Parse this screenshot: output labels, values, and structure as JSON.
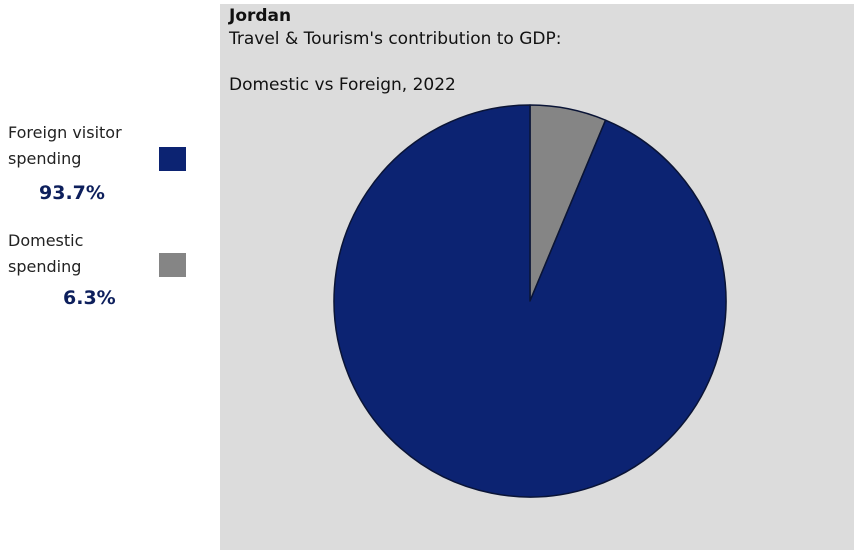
{
  "chart_data": {
    "type": "pie",
    "title": "Jordan",
    "subtitle_line1": "Travel & Tourism's contribution to GDP:",
    "subtitle_line2": "Domestic vs Foreign, 2022",
    "slices": [
      {
        "label": "Foreign visitor spending",
        "label_line1": "Foreign visitor",
        "label_line2": "spending",
        "value": 93.7,
        "value_text": "93.7%",
        "color": "#0c2372"
      },
      {
        "label": "Domestic spending",
        "label_line1": "Domestic",
        "label_line2": "spending",
        "value": 6.3,
        "value_text": "6.3%",
        "color": "#858585"
      }
    ],
    "legend_position": "left"
  }
}
